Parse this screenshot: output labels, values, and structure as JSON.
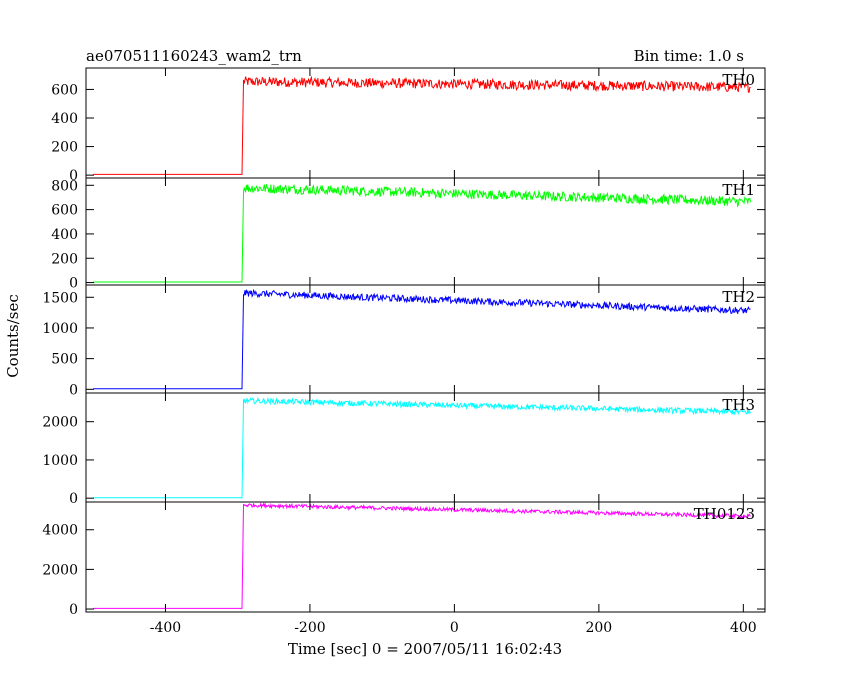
{
  "chart_data": {
    "type": "line",
    "title": "ae070511160243_wam2_trn",
    "subtitle": "Bin time: 1.0 s",
    "xlabel": "Time [sec] 0 = 2007/05/11 16:02:43",
    "ylabel": "Counts/sec",
    "xlim": [
      -510,
      430
    ],
    "x_ticks": [
      -400,
      -200,
      0,
      200,
      400
    ],
    "grid": false,
    "panels": [
      {
        "name": "TH0",
        "color": "#ff0000",
        "ylim": [
          -20,
          750
        ],
        "y_ticks": [
          0,
          200,
          400,
          600
        ],
        "onset": -294,
        "pre_level": 5,
        "peak_level": 655,
        "end_level": 615,
        "noise": 22
      },
      {
        "name": "TH1",
        "color": "#00ff00",
        "ylim": [
          -20,
          860
        ],
        "y_ticks": [
          0,
          200,
          400,
          600,
          800
        ],
        "onset": -294,
        "pre_level": 5,
        "peak_level": 780,
        "end_level": 665,
        "noise": 25
      },
      {
        "name": "TH2",
        "color": "#0000ff",
        "ylim": [
          -60,
          1700
        ],
        "y_ticks": [
          0,
          500,
          1000,
          1500
        ],
        "onset": -294,
        "pre_level": 10,
        "peak_level": 1570,
        "end_level": 1280,
        "noise": 35
      },
      {
        "name": "TH3",
        "color": "#00ffff",
        "ylim": [
          -100,
          2750
        ],
        "y_ticks": [
          0,
          1000,
          2000
        ],
        "onset": -294,
        "pre_level": 10,
        "peak_level": 2550,
        "end_level": 2250,
        "noise": 45
      },
      {
        "name": "TH0123",
        "color": "#ff00ff",
        "ylim": [
          -150,
          5400
        ],
        "y_ticks": [
          0,
          2000,
          4000
        ],
        "onset": -294,
        "pre_level": 30,
        "peak_level": 5250,
        "end_level": 4680,
        "noise": 60
      }
    ]
  }
}
